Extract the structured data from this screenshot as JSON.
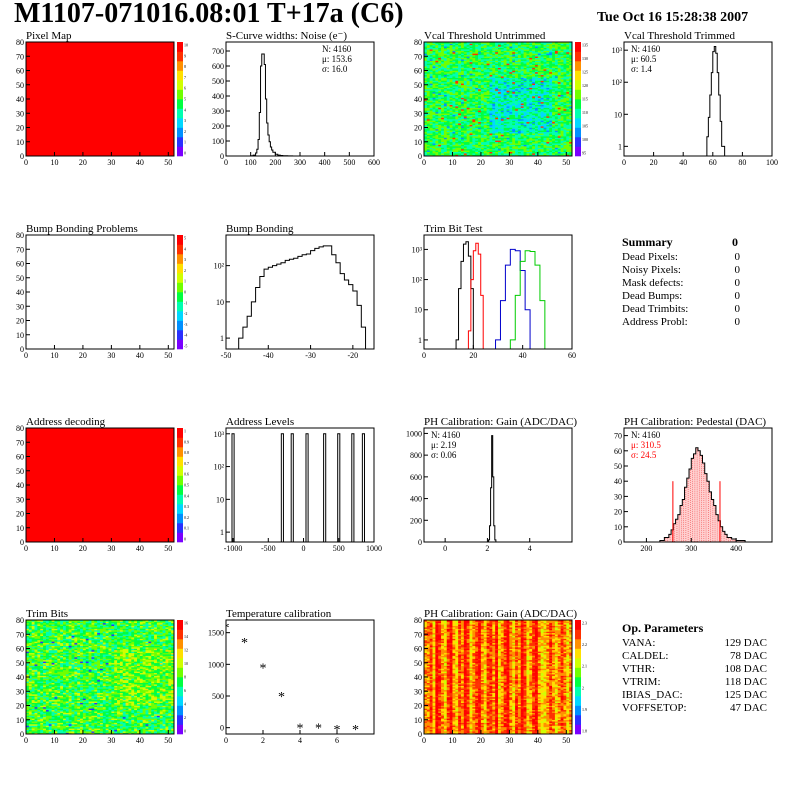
{
  "header": {
    "title": "M1107-071016.08:01 T+17a (C6)",
    "date": "Tue Oct 16 15:28:38 2007"
  },
  "colors": {
    "red": "#ff0000",
    "blue": "#0000cc",
    "green": "#00cc00",
    "black": "#000000"
  },
  "chart_data": [
    {
      "id": "pixel-map",
      "type": "heatmap",
      "title": "Pixel Map",
      "xlim": [
        0,
        52
      ],
      "ylim": [
        0,
        80
      ],
      "xticks": [
        0,
        10,
        20,
        30,
        40,
        50
      ],
      "yticks": [
        0,
        10,
        20,
        30,
        40,
        50,
        60,
        70,
        80
      ],
      "fill": "uniform-red",
      "zrange": [
        0,
        10
      ],
      "zticks": [
        "10",
        "9",
        "8",
        "7",
        "6",
        "5",
        "4",
        "3",
        "2",
        "1",
        "0"
      ]
    },
    {
      "id": "scurve-noise",
      "type": "histogram",
      "title": "S-Curve widths: Noise (e⁻)",
      "xlim": [
        0,
        600
      ],
      "ylim": [
        0,
        760
      ],
      "xticks": [
        0,
        100,
        200,
        300,
        400,
        500,
        600
      ],
      "yticks": [
        0,
        100,
        200,
        300,
        400,
        500,
        600,
        700
      ],
      "x": [
        90,
        100,
        110,
        120,
        125,
        130,
        135,
        140,
        145,
        150,
        155,
        160,
        165,
        170,
        175,
        180,
        185,
        190,
        200,
        210,
        220,
        230,
        250,
        270
      ],
      "values": [
        0,
        2,
        6,
        20,
        45,
        110,
        290,
        600,
        680,
        680,
        610,
        380,
        220,
        140,
        95,
        60,
        40,
        25,
        12,
        6,
        3,
        2,
        1,
        0
      ],
      "stats": {
        "N": "N: 4160",
        "mean": "μ: 153.6",
        "sigma": "σ: 16.0"
      }
    },
    {
      "id": "vcal-untrimmed",
      "type": "heatmap",
      "title": "Vcal Threshold Untrimmed",
      "xlim": [
        0,
        52
      ],
      "ylim": [
        0,
        80
      ],
      "xticks": [
        0,
        10,
        20,
        30,
        40,
        50
      ],
      "yticks": [
        0,
        10,
        20,
        30,
        40,
        50,
        60,
        70,
        80
      ],
      "fill": "noise-green-cyan",
      "zrange": [
        95,
        135
      ],
      "zticks": [
        "135",
        "130",
        "125",
        "120",
        "115",
        "110",
        "105",
        "100",
        "95"
      ]
    },
    {
      "id": "vcal-trimmed",
      "type": "histogram",
      "title": "Vcal Threshold Trimmed",
      "log": true,
      "xlim": [
        0,
        100
      ],
      "xticks": [
        0,
        20,
        40,
        60,
        80,
        100
      ],
      "ylim": [
        0.5,
        1800
      ],
      "x": [
        54,
        56,
        57,
        58,
        59,
        60,
        61,
        62,
        63,
        64,
        65,
        66,
        68
      ],
      "values": [
        0,
        2,
        8,
        40,
        200,
        900,
        1300,
        800,
        200,
        40,
        6,
        1,
        0
      ],
      "stats": {
        "N": "N: 4160",
        "mean": "μ: 60.5",
        "sigma": "σ:  1.4"
      }
    },
    {
      "id": "bump-bonding-problems",
      "type": "heatmap",
      "title": "Bump Bonding Problems",
      "xlim": [
        0,
        52
      ],
      "ylim": [
        0,
        80
      ],
      "xticks": [
        0,
        10,
        20,
        30,
        40,
        50
      ],
      "yticks": [
        0,
        10,
        20,
        30,
        40,
        50,
        60,
        70,
        80
      ],
      "fill": "empty",
      "zrange": [
        -5,
        5
      ],
      "zticks": [
        "5",
        "4",
        "3",
        "2",
        "1",
        "0",
        "-1",
        "-2",
        "-3",
        "-4",
        "-5"
      ]
    },
    {
      "id": "bump-bonding",
      "type": "histogram",
      "title": "Bump Bonding",
      "log": true,
      "xlim": [
        -50,
        -15
      ],
      "xticks": [
        -50,
        -40,
        -30,
        -20
      ],
      "ylim": [
        0.5,
        700
      ],
      "x": [
        -47,
        -46,
        -45,
        -44,
        -43,
        -42,
        -41,
        -40,
        -39,
        -38,
        -37,
        -36,
        -35,
        -34,
        -33,
        -32,
        -31,
        -30,
        -29,
        -28,
        -27,
        -26,
        -25,
        -24,
        -23,
        -22,
        -21,
        -20,
        -19,
        -18,
        -17
      ],
      "values": [
        1,
        2,
        4,
        10,
        25,
        50,
        80,
        90,
        100,
        110,
        120,
        140,
        150,
        160,
        180,
        200,
        210,
        260,
        300,
        330,
        350,
        350,
        200,
        120,
        60,
        40,
        30,
        20,
        8,
        2,
        0
      ]
    },
    {
      "id": "trim-bit-test",
      "type": "histogram",
      "title": "Trim Bit Test",
      "log": true,
      "xlim": [
        0,
        60
      ],
      "xticks": [
        0,
        20,
        40,
        60
      ],
      "ylim": [
        0.5,
        3000
      ],
      "series": [
        {
          "color": "black",
          "x": [
            13,
            14,
            15,
            16,
            17,
            18,
            19,
            20
          ],
          "values": [
            1,
            50,
            400,
            1500,
            1800,
            600,
            50,
            0
          ]
        },
        {
          "color": "red",
          "x": [
            18,
            19,
            20,
            21,
            22,
            23,
            24
          ],
          "values": [
            2,
            100,
            900,
            1600,
            700,
            30,
            0
          ]
        },
        {
          "color": "blue",
          "x": [
            29,
            31,
            33,
            35,
            37,
            39,
            41,
            43
          ],
          "values": [
            1,
            20,
            300,
            1000,
            900,
            200,
            10,
            0
          ]
        },
        {
          "color": "green",
          "x": [
            35,
            37,
            39,
            41,
            43,
            45,
            47,
            49
          ],
          "values": [
            1,
            30,
            400,
            900,
            850,
            300,
            20,
            0
          ]
        }
      ]
    },
    {
      "id": "address-decoding",
      "type": "heatmap",
      "title": "Address decoding",
      "xlim": [
        0,
        52
      ],
      "ylim": [
        0,
        80
      ],
      "xticks": [
        0,
        10,
        20,
        30,
        40,
        50
      ],
      "yticks": [
        0,
        10,
        20,
        30,
        40,
        50,
        60,
        70,
        80
      ],
      "fill": "uniform-red",
      "zrange": [
        0,
        1
      ],
      "zticks": [
        "1",
        "0.9",
        "0.8",
        "0.7",
        "0.6",
        "0.5",
        "0.4",
        "0.3",
        "0.2",
        "0.1",
        "0"
      ]
    },
    {
      "id": "address-levels",
      "type": "histogram",
      "title": "Address Levels",
      "log": true,
      "xlim": [
        -1100,
        1000
      ],
      "xticks": [
        -1000,
        -500,
        0,
        500,
        1000
      ],
      "ylim": [
        0.5,
        1500
      ],
      "peaks": [
        -1000,
        -300,
        -160,
        50,
        300,
        500,
        700,
        850
      ],
      "peak_height": 1000
    },
    {
      "id": "ph-gain",
      "type": "histogram",
      "title": "PH Calibration: Gain (ADC/DAC)",
      "xlim": [
        -1,
        6
      ],
      "xticks": [
        0,
        2,
        4
      ],
      "ylim": [
        0,
        1050
      ],
      "yticks": [
        0,
        200,
        400,
        600,
        800,
        1000
      ],
      "x": [
        2.0,
        2.05,
        2.1,
        2.15,
        2.2,
        2.25,
        2.3,
        2.35,
        2.4
      ],
      "values": [
        0,
        20,
        150,
        500,
        980,
        600,
        150,
        20,
        0
      ],
      "stats": {
        "N": "N: 4160",
        "mean": "μ: 2.19",
        "sigma": "σ: 0.06"
      }
    },
    {
      "id": "ph-pedestal",
      "type": "histogram",
      "title": "PH Calibration: Pedestal (DAC)",
      "xlim": [
        150,
        480
      ],
      "xticks": [
        200,
        300,
        400
      ],
      "ylim": [
        0,
        75
      ],
      "yticks": [
        0,
        10,
        20,
        30,
        40,
        50,
        60,
        70
      ],
      "x": [
        220,
        230,
        240,
        250,
        255,
        260,
        265,
        270,
        275,
        280,
        285,
        290,
        295,
        300,
        305,
        310,
        315,
        320,
        325,
        330,
        335,
        340,
        345,
        350,
        355,
        360,
        365,
        370,
        375,
        380,
        390,
        400,
        410,
        420
      ],
      "values": [
        0,
        1,
        3,
        5,
        8,
        12,
        15,
        18,
        24,
        28,
        36,
        42,
        48,
        55,
        58,
        62,
        60,
        57,
        52,
        45,
        40,
        33,
        28,
        24,
        18,
        14,
        10,
        7,
        5,
        3,
        2,
        1,
        1,
        0
      ],
      "cut_lines": [
        259,
        364
      ],
      "stats": {
        "N": "N: 4160",
        "mean": "μ: 310.5",
        "sigma": "σ: 24.5"
      }
    },
    {
      "id": "trim-bits",
      "type": "heatmap",
      "title": "Trim Bits",
      "xlim": [
        0,
        52
      ],
      "ylim": [
        0,
        80
      ],
      "xticks": [
        0,
        10,
        20,
        30,
        40,
        50
      ],
      "yticks": [
        0,
        10,
        20,
        30,
        40,
        50,
        60,
        70,
        80
      ],
      "fill": "noise-green-yellow",
      "zrange": [
        0,
        16
      ],
      "zticks": [
        "16",
        "14",
        "12",
        "10",
        "8",
        "6",
        "4",
        "2",
        "0"
      ]
    },
    {
      "id": "temperature-calibration",
      "type": "scatter",
      "title": "Temperature calibration",
      "xlim": [
        0,
        8
      ],
      "xticks": [
        0,
        2,
        4,
        6
      ],
      "ylim": [
        -100,
        1700
      ],
      "yticks": [
        0,
        500,
        1000,
        1500
      ],
      "x": [
        0,
        1,
        2,
        3,
        4,
        5,
        6,
        7
      ],
      "values": [
        1590,
        1350,
        950,
        500,
        0,
        0,
        -20,
        -20
      ]
    },
    {
      "id": "ph-gain-map",
      "type": "heatmap",
      "title": "PH Calibration: Gain (ADC/DAC)",
      "xlim": [
        0,
        52
      ],
      "ylim": [
        0,
        80
      ],
      "xticks": [
        0,
        10,
        20,
        30,
        40,
        50
      ],
      "yticks": [
        0,
        10,
        20,
        30,
        40,
        50,
        60,
        70,
        80
      ],
      "fill": "columns-red-yellow",
      "zrange": [
        1.8,
        2.3
      ],
      "zticks": [
        "2.3",
        "2.2",
        "2.1",
        "2",
        "1.9",
        "1.8"
      ]
    }
  ],
  "summary": {
    "heading": "Summary",
    "total": "0",
    "rows": [
      {
        "label": "Dead Pixels:",
        "value": "0"
      },
      {
        "label": "Noisy Pixels:",
        "value": "0"
      },
      {
        "label": "Mask defects:",
        "value": "0"
      },
      {
        "label": "Dead Bumps:",
        "value": "0"
      },
      {
        "label": "Dead Trimbits:",
        "value": "0"
      },
      {
        "label": "Address Probl:",
        "value": "0"
      }
    ]
  },
  "op_params": {
    "heading": "Op. Parameters",
    "rows": [
      {
        "label": "VANA:",
        "value": "129 DAC"
      },
      {
        "label": "CALDEL:",
        "value": "78 DAC"
      },
      {
        "label": "VTHR:",
        "value": "108 DAC"
      },
      {
        "label": "VTRIM:",
        "value": "118 DAC"
      },
      {
        "label": "IBIAS_DAC:",
        "value": "125 DAC"
      },
      {
        "label": "VOFFSETOP:",
        "value": "47 DAC"
      }
    ]
  }
}
